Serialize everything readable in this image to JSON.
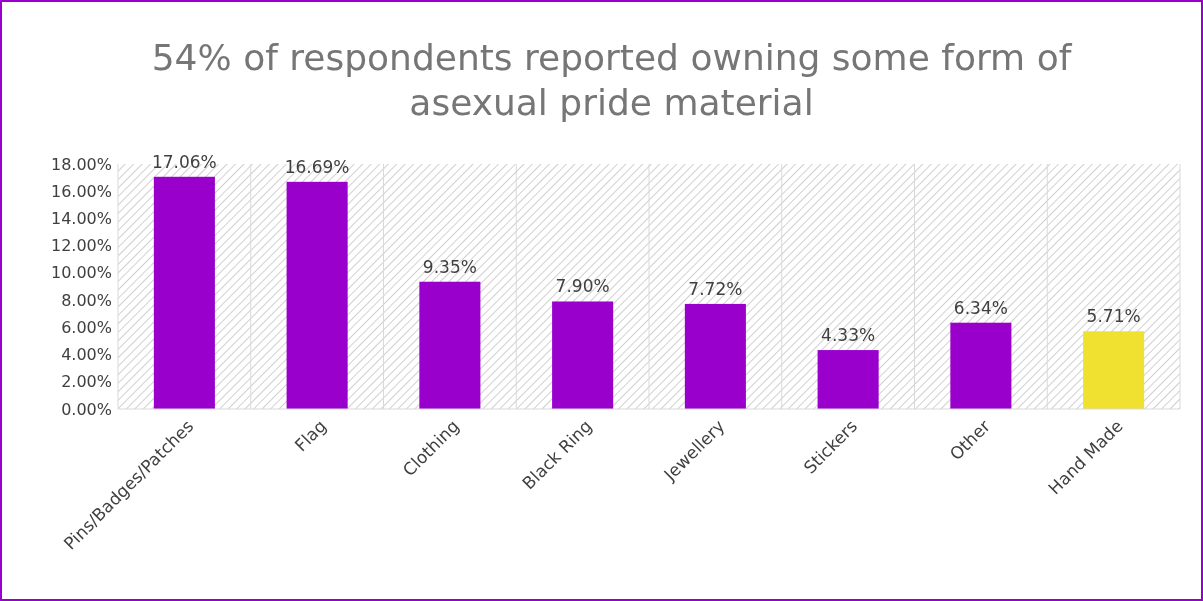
{
  "chart_data": {
    "type": "bar",
    "title": "54% of respondents reported owning some form of asexual pride material",
    "categories": [
      "Pins/Badges/Patches",
      "Flag",
      "Clothing",
      "Black Ring",
      "Jewellery",
      "Stickers",
      "Other",
      "Hand Made"
    ],
    "values": [
      17.06,
      16.69,
      9.35,
      7.9,
      7.72,
      4.33,
      6.34,
      5.71
    ],
    "value_labels": [
      "17.06%",
      "16.69%",
      "9.35%",
      "7.90%",
      "7.72%",
      "4.33%",
      "6.34%",
      "5.71%"
    ],
    "colors": [
      "#9900cc",
      "#9900cc",
      "#9900cc",
      "#9900cc",
      "#9900cc",
      "#9900cc",
      "#9900cc",
      "#f0e130"
    ],
    "ylim": [
      0,
      18
    ],
    "yticks": [
      {
        "value": 0,
        "label": "0.00%"
      },
      {
        "value": 2,
        "label": "2.00%"
      },
      {
        "value": 4,
        "label": "4.00%"
      },
      {
        "value": 6,
        "label": "6.00%"
      },
      {
        "value": 8,
        "label": "8.00%"
      },
      {
        "value": 10,
        "label": "10.00%"
      },
      {
        "value": 12,
        "label": "12.00%"
      },
      {
        "value": 14,
        "label": "14.00%"
      },
      {
        "value": 16,
        "label": "16.00%"
      },
      {
        "value": 18,
        "label": "18.00%"
      }
    ],
    "grid": "x"
  }
}
